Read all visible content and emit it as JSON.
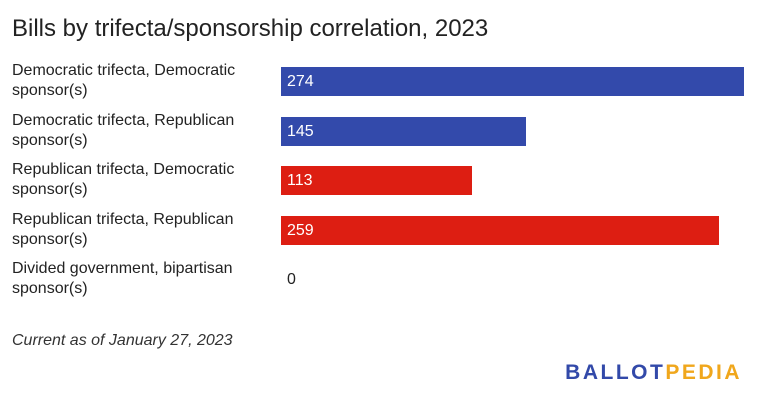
{
  "chart_data": {
    "type": "bar",
    "orientation": "horizontal",
    "title": "Bills by trifecta/sponsorship correlation, 2023",
    "categories": [
      "Democratic trifecta, Democratic sponsor(s)",
      "Democratic trifecta, Republican sponsor(s)",
      "Republican trifecta, Democratic sponsor(s)",
      "Republican trifecta, Republican sponsor(s)",
      "Divided government, bipartisan sponsor(s)"
    ],
    "values": [
      274,
      145,
      113,
      259,
      0
    ],
    "colors": [
      "#334aab",
      "#334aab",
      "#dd1e12",
      "#dd1e12",
      "#dd1e12"
    ],
    "xlim": [
      0,
      274
    ],
    "grid": false,
    "data_labels": true
  },
  "footnote": "Current as of January 27, 2023",
  "logo": {
    "part1": "BALLOT",
    "part2": "PEDIA"
  }
}
